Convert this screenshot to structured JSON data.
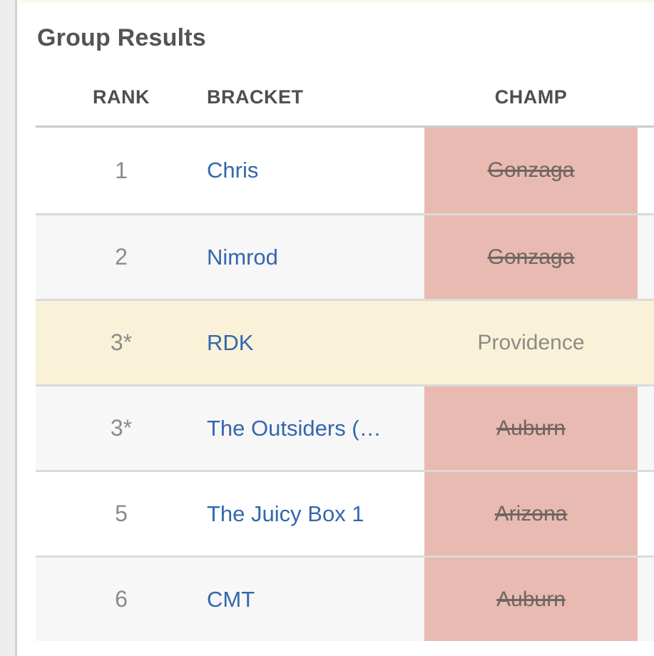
{
  "page": {
    "title": "Group Results"
  },
  "theme": {
    "rail_bg": "#ededed",
    "rail_border": "#d3d3d3",
    "strip_bg": "#fbf9eb",
    "title_color": "#555353",
    "head_color": "#4f4f4f",
    "head_border": "#cccccc",
    "row_border": "#dadada",
    "stripe_bg": "#f7f7f7",
    "highlight_bg": "#faf2d8",
    "rank_color": "#8b8b8b",
    "link_color": "#3467ad",
    "champ_ok_color": "#8c8c85",
    "eliminated_bg": "#e9bab2",
    "eliminated_text": "#6e6661"
  },
  "table": {
    "columns": [
      {
        "key": "rank",
        "label": "RANK"
      },
      {
        "key": "bracket",
        "label": "BRACKET"
      },
      {
        "key": "champ",
        "label": "CHAMP"
      }
    ],
    "rows": [
      {
        "rank": "1",
        "bracket": "Chris",
        "champ": "Gonzaga",
        "champ_eliminated": true,
        "row_highlight": false
      },
      {
        "rank": "2",
        "bracket": "Nimrod",
        "champ": "Gonzaga",
        "champ_eliminated": true,
        "row_highlight": false
      },
      {
        "rank": "3*",
        "bracket": "RDK",
        "champ": "Providence",
        "champ_eliminated": false,
        "row_highlight": true
      },
      {
        "rank": "3*",
        "bracket": "The Outsiders (…",
        "champ": "Auburn",
        "champ_eliminated": true,
        "row_highlight": false
      },
      {
        "rank": "5",
        "bracket": "The Juicy Box 1",
        "champ": "Arizona",
        "champ_eliminated": true,
        "row_highlight": false
      },
      {
        "rank": "6",
        "bracket": "CMT",
        "champ": "Auburn",
        "champ_eliminated": true,
        "row_highlight": false
      }
    ]
  }
}
